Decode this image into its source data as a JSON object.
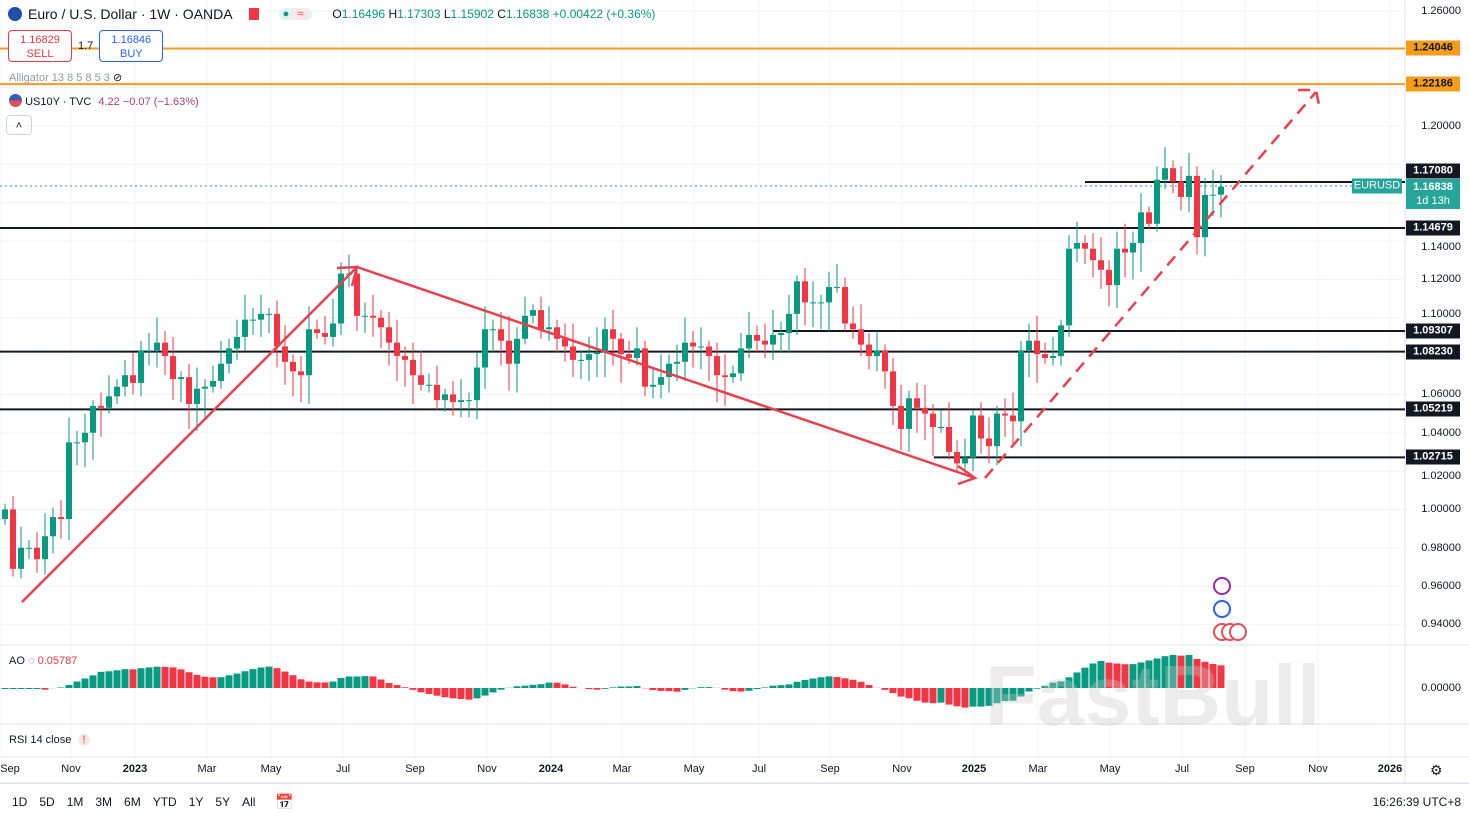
{
  "header": {
    "symbol": "Euro / U.S. Dollar · 1W · OANDA",
    "o_label": "O",
    "o": "1.16496",
    "h_label": "H",
    "h": "1.17303",
    "l_label": "L",
    "l": "1.15902",
    "c_label": "C",
    "c": "1.16838",
    "change": "+0.00422 (+0.36%)"
  },
  "trade": {
    "sell_price": "1.16829",
    "sell": "SELL",
    "spread": "1.7",
    "buy_price": "1.16846",
    "buy": "BUY"
  },
  "indicators": {
    "alligator": "Alligator 13 8 5 8 5 3",
    "us10y": "US10Y · TVC",
    "us10y_val": "4.22 −0.07 (−1.63%)",
    "ao": "AO",
    "ao_val": "0.05787",
    "rsi": "RSI 14 close"
  },
  "colors": {
    "up": "#089981",
    "down": "#f23645",
    "level": "#131722",
    "orange": "#f59c1a",
    "arrow": "#e8404f"
  },
  "price_axis": [
    "1.26000",
    "1.20000",
    "1.14000",
    "1.12000",
    "1.10000",
    "1.06000",
    "1.04000",
    "1.02000",
    "1.00000",
    "0.98000",
    "0.96000",
    "0.94000"
  ],
  "ao_axis": "0.00000",
  "levels": [
    {
      "price": 1.24046,
      "label": "1.24046",
      "color": "orange"
    },
    {
      "price": 1.22186,
      "label": "1.22186",
      "color": "orange"
    },
    {
      "price": 1.1708,
      "label": "1.17080",
      "color": "black"
    },
    {
      "price": 1.14679,
      "label": "1.14679",
      "color": "black"
    },
    {
      "price": 1.09307,
      "label": "1.09307",
      "color": "black"
    },
    {
      "price": 1.0823,
      "label": "1.08230",
      "color": "black"
    },
    {
      "price": 1.05219,
      "label": "1.05219",
      "color": "black"
    },
    {
      "price": 1.02715,
      "label": "1.02715",
      "color": "black"
    }
  ],
  "current": {
    "symbol": "EURUSD",
    "price": "1.16838",
    "countdown": "1d 13h"
  },
  "time_axis": [
    "Sep",
    "Nov",
    "2023",
    "Mar",
    "May",
    "Jul",
    "Sep",
    "Nov",
    "2024",
    "Mar",
    "May",
    "Jul",
    "Sep",
    "Nov",
    "2025",
    "Mar",
    "May",
    "Jul",
    "Sep",
    "Nov",
    "2026"
  ],
  "toolbar": {
    "ranges": [
      "1D",
      "5D",
      "1M",
      "3M",
      "6M",
      "YTD",
      "1Y",
      "5Y",
      "All"
    ],
    "clock": "16:26:39 UTC+8"
  },
  "watermark": "FastBull",
  "chart_data": {
    "type": "candlestick",
    "interval": "1W",
    "ylim": [
      0.93,
      1.265
    ],
    "closes": [
      1.0,
      0.969,
      0.98,
      0.98,
      0.974,
      0.986,
      0.996,
      0.995,
      1.035,
      1.035,
      1.04,
      1.054,
      1.053,
      1.059,
      1.064,
      1.07,
      1.066,
      1.083,
      1.083,
      1.087,
      1.08,
      1.068,
      1.069,
      1.055,
      1.063,
      1.064,
      1.067,
      1.076,
      1.084,
      1.09,
      1.099,
      1.099,
      1.102,
      1.102,
      1.085,
      1.077,
      1.072,
      1.07,
      1.094,
      1.092,
      1.09,
      1.097,
      1.123,
      1.123,
      1.101,
      1.101,
      1.1,
      1.095,
      1.087,
      1.08,
      1.078,
      1.07,
      1.065,
      1.065,
      1.057,
      1.06,
      1.056,
      1.057,
      1.057,
      1.074,
      1.094,
      1.094,
      1.088,
      1.076,
      1.089,
      1.101,
      1.104,
      1.094,
      1.095,
      1.089,
      1.085,
      1.078,
      1.078,
      1.081,
      1.082,
      1.094,
      1.089,
      1.081,
      1.079,
      1.084,
      1.064,
      1.065,
      1.069,
      1.076,
      1.077,
      1.087,
      1.085,
      1.085,
      1.08,
      1.07,
      1.069,
      1.071,
      1.084,
      1.091,
      1.088,
      1.086,
      1.091,
      1.092,
      1.102,
      1.119,
      1.108,
      1.108,
      1.108,
      1.116,
      1.116,
      1.097,
      1.094,
      1.086,
      1.08,
      1.083,
      1.072,
      1.054,
      1.042,
      1.058,
      1.053,
      1.05,
      1.043,
      1.043,
      1.03,
      1.024,
      1.027,
      1.049,
      1.037,
      1.033,
      1.05,
      1.049,
      1.046,
      1.083,
      1.088,
      1.081,
      1.079,
      1.08,
      1.096,
      1.136,
      1.139,
      1.136,
      1.13,
      1.125,
      1.117,
      1.136,
      1.134,
      1.139,
      1.155,
      1.149,
      1.172,
      1.178,
      1.171,
      1.163,
      1.174,
      1.142,
      1.164,
      1.1642,
      1.16838
    ]
  }
}
